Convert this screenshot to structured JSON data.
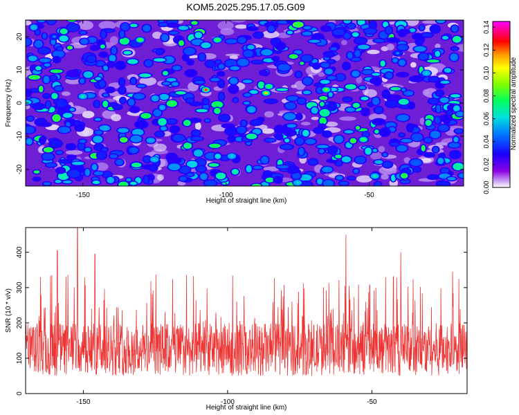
{
  "title": "KOM5.2025.295.17.05.G09",
  "chart_data": [
    {
      "type": "heatmap",
      "xlabel": "Height of straight line (km)",
      "ylabel": "Frequency (Hz)",
      "xlim": [
        -170,
        -17
      ],
      "ylim": [
        -25,
        25
      ],
      "x_ticks": [
        -150,
        -100,
        -50
      ],
      "y_ticks": [
        -20,
        -10,
        0,
        10,
        20
      ],
      "colorbar": {
        "label": "Normalized spectral amplitude",
        "range": [
          0.0,
          0.145
        ],
        "ticks": [
          "0.00",
          "0.02",
          "0.04",
          "0.06",
          "0.08",
          "0.10",
          "0.12",
          "0.14"
        ],
        "colors": [
          "#ffffff",
          "#9400d3",
          "#0000ff",
          "#00bfff",
          "#00ff80",
          "#80ff00",
          "#ffff00",
          "#ff8000",
          "#ff0000",
          "#ff00ff"
        ]
      },
      "peaks": [
        {
          "x": -107,
          "y": 4,
          "value": 0.135
        },
        {
          "x": -86,
          "y": 3,
          "value": 0.11
        },
        {
          "x": -65,
          "y": 4,
          "value": 0.09
        },
        {
          "x": -130,
          "y": 19,
          "value": 0.09
        },
        {
          "x": -103,
          "y": 19,
          "value": 0.08
        },
        {
          "x": -150,
          "y": 2,
          "value": 0.07
        },
        {
          "x": -52,
          "y": -11,
          "value": 0.08
        },
        {
          "x": -85,
          "y": 5,
          "value": 0.08
        },
        {
          "x": -48,
          "y": -22,
          "value": 0.07
        },
        {
          "x": -125,
          "y": -17,
          "value": 0.06
        },
        {
          "x": -98,
          "y": -16,
          "value": 0.06
        },
        {
          "x": -75,
          "y": -24,
          "value": 0.06
        },
        {
          "x": -30,
          "y": 9,
          "value": 0.06
        },
        {
          "x": -160,
          "y": 20,
          "value": 0.05
        },
        {
          "x": -40,
          "y": 15,
          "value": 0.05
        }
      ]
    },
    {
      "type": "line",
      "xlabel": "Height of straight line (km)",
      "ylabel": "SNR (10 * v/v)",
      "xlim": [
        -170,
        -17
      ],
      "ylim": [
        0,
        470
      ],
      "x_ticks": [
        -150,
        -100,
        -50
      ],
      "y_ticks": [
        0,
        100,
        200,
        300,
        400
      ],
      "color": "#ee3333",
      "baseline_mean": 125,
      "notable_peaks": [
        {
          "x": -152,
          "y": 470
        },
        {
          "x": -159,
          "y": 405
        },
        {
          "x": -59,
          "y": 450
        },
        {
          "x": -40,
          "y": 400
        },
        {
          "x": -146,
          "y": 395
        },
        {
          "x": -22,
          "y": 345
        }
      ]
    }
  ]
}
